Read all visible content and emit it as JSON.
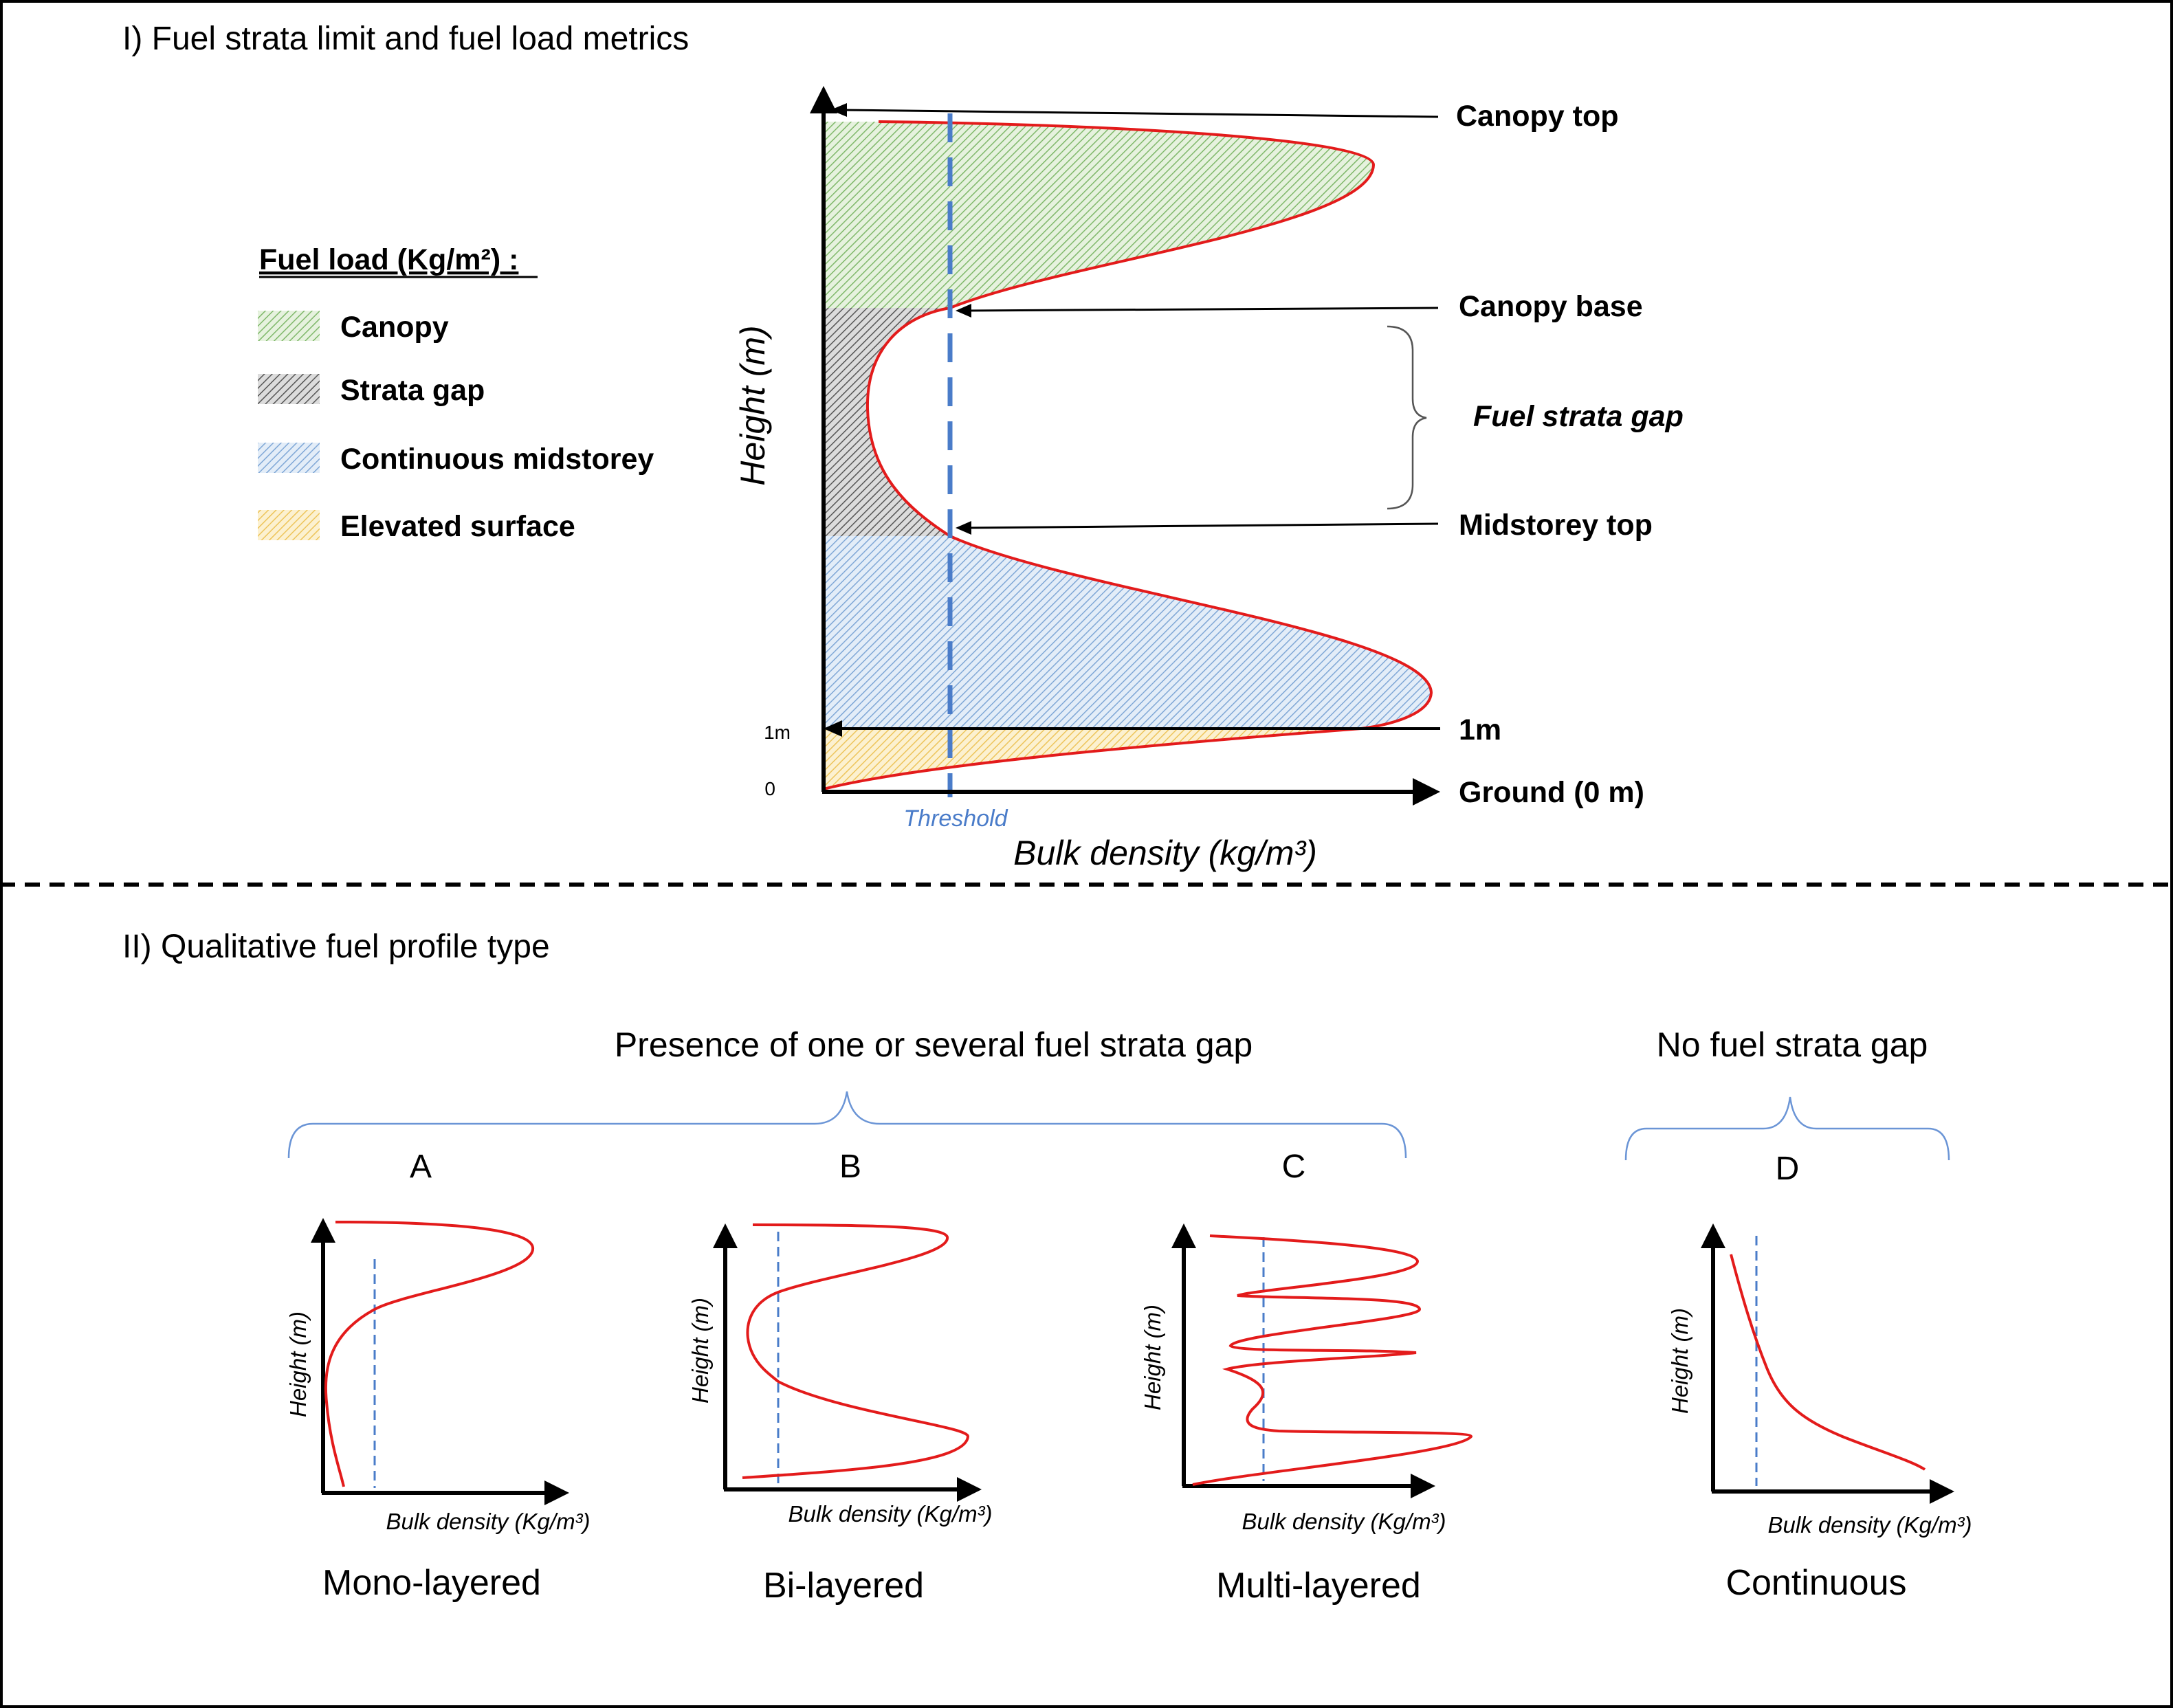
{
  "section1": {
    "title": "I) Fuel strata limit and fuel load metrics",
    "legend": {
      "title": "Fuel load (Kg/m²) :",
      "items": [
        {
          "label": "Canopy",
          "color": "#8cc276"
        },
        {
          "label": "Strata gap",
          "color": "#6a6a6a"
        },
        {
          "label": "Continuous midstorey",
          "color": "#8db5dc"
        },
        {
          "label": "Elevated surface",
          "color": "#f2cf6e"
        }
      ]
    },
    "diagram": {
      "ylabel": "Height (m)",
      "xlabel": "Bulk density (kg/m³)",
      "threshold_label": "Threshold",
      "tick_1m": "1m",
      "tick_0": "0",
      "annotations": {
        "canopy_top": "Canopy top",
        "canopy_base": "Canopy base",
        "fuel_strata_gap": "Fuel strata gap",
        "midstorey_top": "Midstorey top",
        "one_m": "1m",
        "ground": "Ground (0 m)"
      }
    }
  },
  "section2": {
    "title": "II) Qualitative fuel profile type",
    "group_gap": "Presence of one or several fuel strata gap",
    "group_nogap": "No fuel strata gap",
    "profiles": [
      {
        "letter": "A",
        "name": "Mono-layered",
        "ylabel": "Height (m)",
        "xlabel": "Bulk density (Kg/m³)"
      },
      {
        "letter": "B",
        "name": "Bi-layered",
        "ylabel": "Height (m)",
        "xlabel": "Bulk density (Kg/m³)"
      },
      {
        "letter": "C",
        "name": "Multi-layered",
        "ylabel": "Height (m)",
        "xlabel": "Bulk density (Kg/m³)"
      },
      {
        "letter": "D",
        "name": "Continuous",
        "ylabel": "Height (m)",
        "xlabel": "Bulk density (Kg/m³)"
      }
    ]
  },
  "colors": {
    "curve": "#e31b1b",
    "threshold": "#4a7cc9",
    "threshold_text": "#4a7cc9",
    "brace_blue": "#6b95d6",
    "axis": "#000000"
  }
}
